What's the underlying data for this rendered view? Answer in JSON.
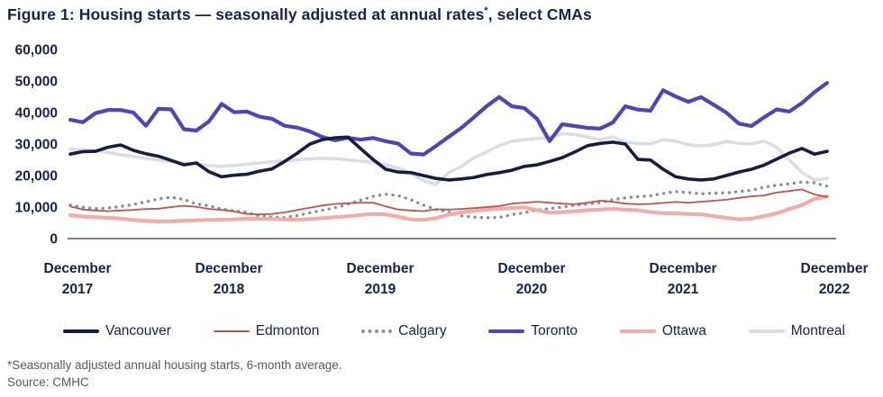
{
  "header": {
    "title_part1": "Figure 1: Housing starts — seasonally adjusted at annual rates",
    "title_sup": "*",
    "title_part2": ", select CMAs"
  },
  "footnotes": {
    "line1": "*Seasonally adjusted annual housing starts, 6-month average.",
    "line2": "Source: CMHC"
  },
  "colors": {
    "text": "#1b2147",
    "axis_line": "#55565a",
    "footnote_text": "#58595b",
    "background": "#ffffff"
  },
  "chart_data": {
    "type": "line",
    "title": "Figure 1: Housing starts — seasonally adjusted at annual rates*, select CMAs",
    "x_axis_note": "monthly, December 2017 to December 2022",
    "x_ticks": [
      [
        "December",
        "2017"
      ],
      [
        "December",
        "2018"
      ],
      [
        "December",
        "2019"
      ],
      [
        "December",
        "2020"
      ],
      [
        "December",
        "2021"
      ],
      [
        "December",
        "2022"
      ]
    ],
    "y_ticks": [
      {
        "value": 0,
        "label": "0"
      },
      {
        "value": 10000,
        "label": "10,000"
      },
      {
        "value": 20000,
        "label": "20,000"
      },
      {
        "value": 30000,
        "label": "30,000"
      },
      {
        "value": 40000,
        "label": "40,000"
      },
      {
        "value": 50000,
        "label": "50,000"
      },
      {
        "value": 60000,
        "label": "60,000"
      }
    ],
    "ylim": [
      0,
      60000
    ],
    "grid": false,
    "legend_position": "bottom",
    "draw_order": [
      5,
      2,
      4,
      1,
      3,
      0
    ],
    "series": [
      {
        "name": "Vancouver",
        "color": "#161d3f",
        "width": 3.6,
        "style": "solid",
        "values": [
          26800,
          27600,
          27700,
          29000,
          29700,
          28000,
          26900,
          26100,
          24800,
          23400,
          24000,
          21200,
          19600,
          20100,
          20400,
          21400,
          22100,
          24500,
          27100,
          30000,
          31400,
          32000,
          32200,
          28600,
          25100,
          22000,
          21100,
          20900,
          20000,
          19100,
          18600,
          18900,
          19400,
          20300,
          20900,
          21700,
          22900,
          23400,
          24500,
          25700,
          27500,
          29500,
          30200,
          30600,
          30000,
          25100,
          24900,
          22000,
          19600,
          18900,
          18600,
          18900,
          20000,
          21100,
          22000,
          23300,
          25200,
          27100,
          28600,
          26800,
          27700
        ]
      },
      {
        "name": "Edmonton",
        "color": "#bb544e",
        "width": 1.8,
        "style": "solid",
        "values": [
          10200,
          9200,
          8900,
          8700,
          8900,
          9100,
          9400,
          9500,
          10000,
          10400,
          10100,
          9400,
          9100,
          8600,
          7800,
          7700,
          7800,
          8300,
          9100,
          9800,
          10500,
          11000,
          11200,
          11400,
          11400,
          10200,
          9200,
          8900,
          8700,
          9300,
          9200,
          9400,
          9700,
          10000,
          10300,
          11100,
          11400,
          11700,
          11400,
          11100,
          10900,
          11400,
          12000,
          11700,
          11100,
          10900,
          11000,
          11300,
          11600,
          11400,
          11700,
          12000,
          12300,
          12900,
          13400,
          13700,
          14600,
          15100,
          15600,
          14000,
          13200
        ]
      },
      {
        "name": "Calgary",
        "color": "#8b8e98",
        "width": 3.0,
        "style": "dotted",
        "values": [
          10600,
          9900,
          9500,
          9700,
          10200,
          10800,
          11700,
          12600,
          13100,
          12400,
          11000,
          10400,
          9400,
          8800,
          8300,
          7200,
          6800,
          6700,
          7300,
          8200,
          9000,
          9800,
          10900,
          12200,
          13400,
          14100,
          13600,
          12300,
          10600,
          9200,
          8400,
          7200,
          6800,
          6600,
          6700,
          7600,
          8200,
          9100,
          9500,
          10000,
          10600,
          10900,
          11500,
          12300,
          12900,
          13300,
          13600,
          14300,
          14900,
          14600,
          14200,
          14400,
          14500,
          14900,
          15300,
          16300,
          16900,
          17400,
          17900,
          17700,
          16600
        ]
      },
      {
        "name": "Toronto",
        "color": "#4e46b4",
        "width": 4.2,
        "style": "solid",
        "values": [
          37700,
          36900,
          39800,
          40800,
          40800,
          40000,
          35800,
          41200,
          41000,
          34700,
          34300,
          37200,
          42700,
          40100,
          40300,
          38700,
          38000,
          35800,
          35200,
          34000,
          32200,
          31200,
          32000,
          31400,
          31900,
          30900,
          30100,
          27000,
          26700,
          29400,
          32300,
          35100,
          38500,
          42000,
          44900,
          42000,
          41400,
          38000,
          30900,
          36300,
          35700,
          35100,
          34900,
          36800,
          42000,
          40900,
          40600,
          47100,
          45100,
          43400,
          44900,
          42500,
          40000,
          36500,
          35700,
          38500,
          41000,
          40300,
          43000,
          46500,
          49400
        ]
      },
      {
        "name": "Ottawa",
        "color": "#eeaeaa",
        "width": 4.2,
        "style": "solid",
        "values": [
          7400,
          7000,
          6800,
          6600,
          6300,
          5900,
          5600,
          5400,
          5500,
          5700,
          5800,
          5900,
          6000,
          6100,
          6300,
          6300,
          6200,
          6100,
          6000,
          6200,
          6500,
          6800,
          7100,
          7500,
          7800,
          7700,
          6900,
          6100,
          5900,
          6500,
          7600,
          8300,
          8800,
          9200,
          9500,
          9700,
          9900,
          9000,
          8200,
          8400,
          8700,
          9000,
          9200,
          9400,
          9200,
          9000,
          8400,
          8100,
          8000,
          7800,
          7700,
          7100,
          6600,
          6100,
          6300,
          7100,
          8000,
          9400,
          10600,
          12600,
          13400
        ]
      },
      {
        "name": "Montreal",
        "color": "#dadde2",
        "width": 3.6,
        "style": "solid",
        "values": [
          28400,
          28200,
          27900,
          27300,
          26600,
          26000,
          25400,
          24900,
          24400,
          24000,
          23600,
          23200,
          22900,
          23200,
          23600,
          24000,
          24400,
          24700,
          25000,
          25300,
          25500,
          25300,
          25000,
          24600,
          24200,
          23400,
          22400,
          20600,
          18400,
          17200,
          20900,
          22900,
          25700,
          27500,
          29500,
          30800,
          31400,
          31700,
          32200,
          33300,
          33000,
          32200,
          31400,
          32300,
          30600,
          30200,
          30000,
          31400,
          30900,
          29800,
          29400,
          29800,
          30800,
          30200,
          30000,
          30900,
          29000,
          25000,
          21000,
          18600,
          19100
        ]
      }
    ]
  }
}
